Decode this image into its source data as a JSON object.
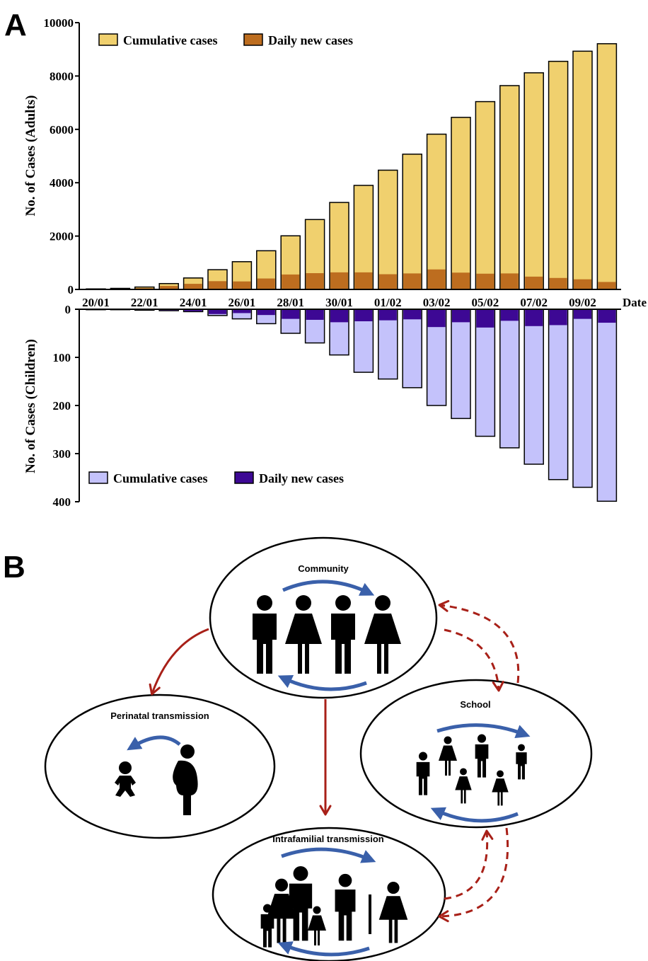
{
  "panel_labels": {
    "a": "A",
    "b": "B"
  },
  "colors": {
    "adult_cumulative": "#f0d06e",
    "adult_daily": "#bd6d1f",
    "child_cumulative": "#c4c2fb",
    "child_daily": "#3d0894",
    "arrow_blue": "#3a60aa",
    "arrow_red": "#a82018"
  },
  "chart_data": [
    {
      "type": "bar",
      "panel": "A-top",
      "ylabel": "No. of Cases (Adults)",
      "xlabel": "Date",
      "ylim": [
        0,
        10000
      ],
      "yticks": [
        "0",
        "2000",
        "4000",
        "6000",
        "8000",
        "10000"
      ],
      "xtick_labels": [
        "20/01",
        "22/01",
        "24/01",
        "26/01",
        "28/01",
        "30/01",
        "01/02",
        "03/02",
        "05/02",
        "07/02",
        "09/02"
      ],
      "legend": [
        "Cumulative cases",
        "Daily new cases"
      ],
      "legend_position": "top-left",
      "categories": [
        "20/01",
        "21/01",
        "22/01",
        "23/01",
        "24/01",
        "25/01",
        "26/01",
        "27/01",
        "28/01",
        "29/01",
        "30/01",
        "31/01",
        "01/02",
        "02/02",
        "03/02",
        "04/02",
        "05/02",
        "06/02",
        "07/02",
        "08/02",
        "09/02",
        "10/02"
      ],
      "series": [
        {
          "name": "Cumulative cases",
          "values": [
            20,
            40,
            90,
            220,
            430,
            740,
            1040,
            1450,
            2010,
            2620,
            3260,
            3900,
            4470,
            5070,
            5820,
            6450,
            7040,
            7640,
            8120,
            8550,
            8930,
            9210
          ]
        },
        {
          "name": "Daily new cases",
          "values": [
            10,
            20,
            50,
            130,
            210,
            310,
            300,
            410,
            560,
            610,
            640,
            640,
            570,
            600,
            750,
            630,
            590,
            600,
            480,
            430,
            380,
            280
          ]
        }
      ]
    },
    {
      "type": "bar",
      "panel": "A-bottom",
      "ylabel": "No. of Cases (Children)",
      "ylim": [
        0,
        400
      ],
      "yticks": [
        "0",
        "100",
        "200",
        "300",
        "400"
      ],
      "legend": [
        "Cumulative cases",
        "Daily new cases"
      ],
      "legend_position": "bottom-left",
      "categories": [
        "20/01",
        "21/01",
        "22/01",
        "23/01",
        "24/01",
        "25/01",
        "26/01",
        "27/01",
        "28/01",
        "29/01",
        "30/01",
        "31/01",
        "01/02",
        "02/02",
        "03/02",
        "04/02",
        "05/02",
        "06/02",
        "07/02",
        "08/02",
        "09/02",
        "10/02"
      ],
      "series": [
        {
          "name": "Cumulative cases",
          "values": [
            1,
            1,
            2,
            3,
            5,
            13,
            20,
            30,
            50,
            70,
            95,
            131,
            145,
            163,
            200,
            227,
            264,
            288,
            322,
            354,
            370,
            399
          ]
        },
        {
          "name": "Daily new cases",
          "values": [
            1,
            1,
            1,
            2,
            4,
            10,
            8,
            12,
            20,
            22,
            27,
            25,
            23,
            21,
            37,
            27,
            38,
            24,
            35,
            33,
            20,
            28
          ]
        }
      ]
    }
  ],
  "diagram": {
    "community": {
      "label": "Community"
    },
    "perinatal": {
      "label": "Perinatal transmission"
    },
    "school": {
      "label": "School"
    },
    "intrafamilial": {
      "label": "Intrafamilial transmission"
    }
  }
}
